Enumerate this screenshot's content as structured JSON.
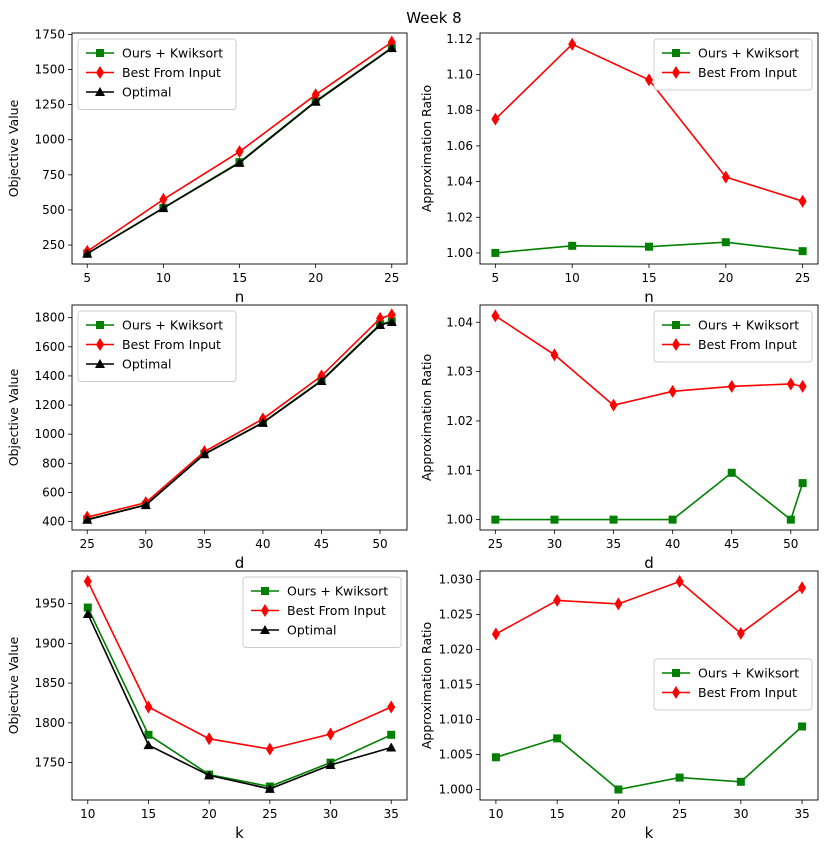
{
  "figure_title": "Week 8",
  "colors": {
    "ours": "#008000",
    "best": "#ff0000",
    "optimal": "#000000"
  },
  "chart_data": [
    {
      "id": "n-objective",
      "type": "line",
      "xlabel": "n",
      "ylabel": "Objective Value",
      "x": [
        5,
        10,
        15,
        20,
        25
      ],
      "xticks": [
        "5",
        "10",
        "15",
        "20",
        "25"
      ],
      "xlim": [
        4.0,
        26.0
      ],
      "yticks": [
        "250",
        "500",
        "750",
        "1000",
        "1250",
        "1500",
        "1750"
      ],
      "ytick_values": [
        250,
        500,
        750,
        1000,
        1250,
        1500,
        1750
      ],
      "ylim": [
        115,
        1760
      ],
      "legend": "top-left",
      "series": [
        {
          "name": "Ours + Kwiksort",
          "key": "ours",
          "marker": "square",
          "values": [
            190,
            515,
            840,
            1275,
            1655
          ]
        },
        {
          "name": "Best From Input",
          "key": "best",
          "marker": "diamond",
          "values": [
            205,
            575,
            915,
            1320,
            1695
          ]
        },
        {
          "name": "Optimal",
          "key": "optimal",
          "marker": "triangle",
          "values": [
            188,
            513,
            835,
            1270,
            1652
          ]
        }
      ]
    },
    {
      "id": "n-ratio",
      "type": "line",
      "xlabel": "n",
      "ylabel": "Approximation Ratio",
      "x": [
        5,
        10,
        15,
        20,
        25
      ],
      "xticks": [
        "5",
        "10",
        "15",
        "20",
        "25"
      ],
      "xlim": [
        4.0,
        26.0
      ],
      "yticks": [
        "1.00",
        "1.02",
        "1.04",
        "1.06",
        "1.08",
        "1.10",
        "1.12"
      ],
      "ytick_values": [
        1.0,
        1.02,
        1.04,
        1.06,
        1.08,
        1.1,
        1.12
      ],
      "ylim": [
        0.9938,
        1.1233
      ],
      "legend": "top-right",
      "series": [
        {
          "name": "Ours + Kwiksort",
          "key": "ours",
          "marker": "square",
          "values": [
            1.0,
            1.004,
            1.0035,
            1.006,
            1.001
          ]
        },
        {
          "name": "Best From Input",
          "key": "best",
          "marker": "diamond",
          "values": [
            1.075,
            1.117,
            1.097,
            1.0425,
            1.029
          ]
        }
      ]
    },
    {
      "id": "d-objective",
      "type": "line",
      "xlabel": "d",
      "ylabel": "Objective Value",
      "x": [
        25,
        30,
        35,
        40,
        45,
        50,
        51
      ],
      "xticks": [
        "25",
        "30",
        "35",
        "40",
        "45",
        "50"
      ],
      "xlim": [
        23.7,
        52.3
      ],
      "yticks": [
        "400",
        "600",
        "800",
        "1000",
        "1200",
        "1400",
        "1600",
        "1800"
      ],
      "ytick_values": [
        400,
        600,
        800,
        1000,
        1200,
        1400,
        1600,
        1800
      ],
      "ylim": [
        342,
        1887
      ],
      "legend": "top-left",
      "series": [
        {
          "name": "Ours + Kwiksort",
          "key": "ours",
          "marker": "square",
          "values": [
            415,
            515,
            865,
            1080,
            1370,
            1755,
            1775
          ]
        },
        {
          "name": "Best From Input",
          "key": "best",
          "marker": "diamond",
          "values": [
            430,
            530,
            880,
            1105,
            1400,
            1795,
            1820
          ]
        },
        {
          "name": "Optimal",
          "key": "optimal",
          "marker": "triangle",
          "values": [
            412,
            513,
            862,
            1078,
            1365,
            1750,
            1770
          ]
        }
      ]
    },
    {
      "id": "d-ratio",
      "type": "line",
      "xlabel": "d",
      "ylabel": "Approximation Ratio",
      "x": [
        25,
        30,
        35,
        40,
        45,
        50,
        51
      ],
      "xticks": [
        "25",
        "30",
        "35",
        "40",
        "45",
        "50"
      ],
      "xlim": [
        23.7,
        52.3
      ],
      "yticks": [
        "1.00",
        "1.01",
        "1.02",
        "1.03",
        "1.04"
      ],
      "ytick_values": [
        1.0,
        1.01,
        1.02,
        1.03,
        1.04
      ],
      "ylim": [
        0.9979,
        1.0435
      ],
      "legend": "top-right",
      "series": [
        {
          "name": "Ours + Kwiksort",
          "key": "ours",
          "marker": "square",
          "values": [
            1.0,
            1.0,
            1.0,
            1.0,
            1.0095,
            1.0,
            1.0074
          ]
        },
        {
          "name": "Best From Input",
          "key": "best",
          "marker": "diamond",
          "values": [
            1.0413,
            1.0334,
            1.0232,
            1.026,
            1.027,
            1.0275,
            1.027
          ]
        }
      ]
    },
    {
      "id": "k-objective",
      "type": "line",
      "xlabel": "k",
      "ylabel": "Objective Value",
      "x": [
        10,
        15,
        20,
        25,
        30,
        35
      ],
      "xticks": [
        "10",
        "15",
        "20",
        "25",
        "30",
        "35"
      ],
      "xlim": [
        8.7,
        36.3
      ],
      "yticks": [
        "1750",
        "1800",
        "1850",
        "1900",
        "1950"
      ],
      "ytick_values": [
        1750,
        1800,
        1850,
        1900,
        1950
      ],
      "ylim": [
        1703,
        1991
      ],
      "legend": "top-right",
      "series": [
        {
          "name": "Ours + Kwiksort",
          "key": "ours",
          "marker": "square",
          "values": [
            1945,
            1785,
            1735,
            1720,
            1750,
            1785
          ]
        },
        {
          "name": "Best From Input",
          "key": "best",
          "marker": "diamond",
          "values": [
            1978,
            1820,
            1780,
            1767,
            1786,
            1820
          ]
        },
        {
          "name": "Optimal",
          "key": "optimal",
          "marker": "triangle",
          "values": [
            1937,
            1772,
            1734,
            1717,
            1747,
            1769
          ]
        }
      ]
    },
    {
      "id": "k-ratio",
      "type": "line",
      "xlabel": "k",
      "ylabel": "Approximation Ratio",
      "x": [
        10,
        15,
        20,
        25,
        30,
        35
      ],
      "xticks": [
        "10",
        "15",
        "20",
        "25",
        "30",
        "35"
      ],
      "xlim": [
        8.7,
        36.3
      ],
      "yticks": [
        "1.000",
        "1.005",
        "1.010",
        "1.015",
        "1.020",
        "1.025",
        "1.030"
      ],
      "ytick_values": [
        1.0,
        1.005,
        1.01,
        1.015,
        1.02,
        1.025,
        1.03
      ],
      "ylim": [
        0.9985,
        1.0312
      ],
      "legend": "center-right",
      "series": [
        {
          "name": "Ours + Kwiksort",
          "key": "ours",
          "marker": "square",
          "values": [
            1.0046,
            1.0073,
            1.0,
            1.0017,
            1.0011,
            1.009
          ]
        },
        {
          "name": "Best From Input",
          "key": "best",
          "marker": "diamond",
          "values": [
            1.0222,
            1.027,
            1.0265,
            1.0297,
            1.0223,
            1.0288
          ]
        }
      ]
    }
  ]
}
